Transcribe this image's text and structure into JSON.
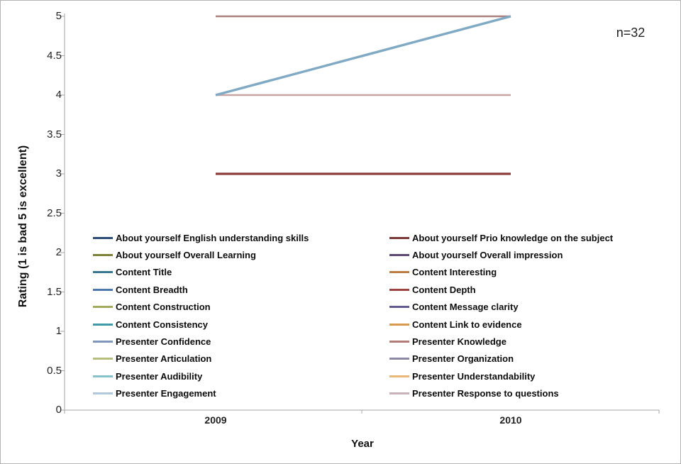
{
  "frame": {
    "background": "#ffffff",
    "border_color": "#b3b3b3",
    "axis_color": "#a6a6a6"
  },
  "chart_data": {
    "type": "line",
    "title": "",
    "xlabel": "Year",
    "ylabel": "Rating (1 is bad 5 is excellent)",
    "annotation": "n=32",
    "x_categories": [
      "2009",
      "2010"
    ],
    "ylim": [
      0,
      5
    ],
    "y_ticks": [
      "5",
      "4.5",
      "4",
      "3.5",
      "3",
      "2.5",
      "2",
      "1.5",
      "1",
      "0.5",
      "0"
    ],
    "grid": "off",
    "legend_position": "inside-bottom-two-columns",
    "legend_columns": {
      "left": [
        {
          "name": "About yourself English understanding skills",
          "color": "#2c4d75"
        },
        {
          "name": "About yourself Overall Learning",
          "color": "#7d8039"
        },
        {
          "name": "Content Title",
          "color": "#3a7891"
        },
        {
          "name": "Content Breadth",
          "color": "#4d78ac"
        },
        {
          "name": "Content Construction",
          "color": "#a3aa5c"
        },
        {
          "name": "Content Consistency",
          "color": "#3f9aa8"
        },
        {
          "name": "Presenter Confidence",
          "color": "#7f97b9"
        },
        {
          "name": "Presenter Articulation",
          "color": "#b6bf7d"
        },
        {
          "name": "Presenter Audibility",
          "color": "#87c1cb"
        },
        {
          "name": "Presenter Engagement",
          "color": "#b2c8dd"
        }
      ],
      "right": [
        {
          "name": "About yourself Prio knowledge on the subject",
          "color": "#7b3a38"
        },
        {
          "name": "About yourself Overall impression",
          "color": "#5e4876"
        },
        {
          "name": "Content Interesting",
          "color": "#bb7e44"
        },
        {
          "name": "Content Depth",
          "color": "#9d4440"
        },
        {
          "name": "Content Message clarity",
          "color": "#655a8d"
        },
        {
          "name": "Content Link to evidence",
          "color": "#d99a4e"
        },
        {
          "name": "Presenter Knowledge",
          "color": "#b27c78"
        },
        {
          "name": "Presenter Organization",
          "color": "#8d89a6"
        },
        {
          "name": "Presenter Understandability",
          "color": "#eab878"
        },
        {
          "name": "Presenter Response to questions",
          "color": "#c9b2b9"
        }
      ]
    },
    "visible_lines": [
      {
        "series_hint": "flat at 5",
        "points": [
          [
            2009,
            5
          ],
          [
            2010,
            5
          ]
        ],
        "color": "#aa817e",
        "width": 2.6
      },
      {
        "series_hint": "flat at 4",
        "points": [
          [
            2009,
            4
          ],
          [
            2010,
            4
          ]
        ],
        "color": "#c8a5a2",
        "width": 2.6
      },
      {
        "series_hint": "flat at 3",
        "points": [
          [
            2009,
            3
          ],
          [
            2010,
            3
          ]
        ],
        "color": "#8e3e3c",
        "width": 3.2
      },
      {
        "series_hint": "rising 4 to 5",
        "points": [
          [
            2009,
            4
          ],
          [
            2010,
            5
          ]
        ],
        "color": "#80aac4",
        "width": 3.4
      }
    ]
  }
}
